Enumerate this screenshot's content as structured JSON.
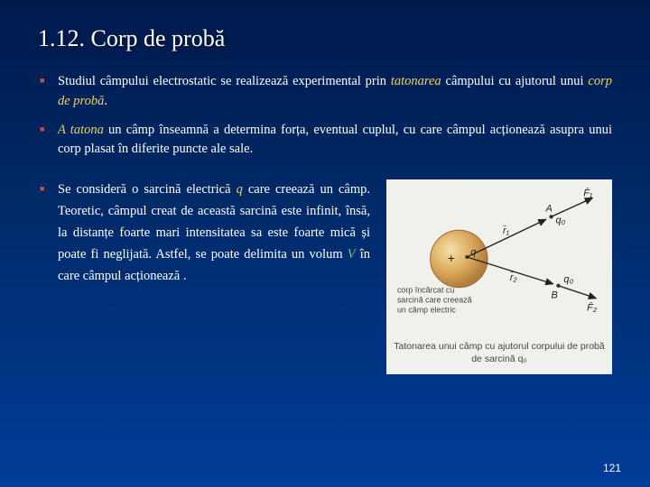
{
  "title": "1.12. Corp de probă",
  "bullets_top": [
    {
      "parts": [
        {
          "t": "Studiul câmpului electrostatic se realizează experimental prin ",
          "cls": ""
        },
        {
          "t": "tatonarea",
          "cls": "italic-yellow"
        },
        {
          "t": " câmpului cu ajutorul unui ",
          "cls": ""
        },
        {
          "t": "corp de probă",
          "cls": "italic-yellow"
        },
        {
          "t": ".",
          "cls": ""
        }
      ]
    },
    {
      "parts": [
        {
          "t": "A tatona",
          "cls": "italic-yellow"
        },
        {
          "t": " un câmp înseamnă a determina forța, eventual cuplul, cu care câmpul acționează asupra unui corp plasat în diferite puncte ale sale.",
          "cls": ""
        }
      ]
    }
  ],
  "bullet_lower": {
    "parts": [
      {
        "t": "Se consideră o sarcină electrică ",
        "cls": ""
      },
      {
        "t": "q",
        "cls": "italic-yellow"
      },
      {
        "t": " care creează un câmp. Teoretic, câmpul creat de această sarcină este infinit, însă, la distanțe foarte mari intensitatea sa este foarte mică și poate fi neglijată. Astfel, se poate delimita un volum ",
        "cls": ""
      },
      {
        "t": "V",
        "cls": "italic-green"
      },
      {
        "t": "  în care câmpul acționează .",
        "cls": ""
      }
    ]
  },
  "figure": {
    "caption_left": "corp încărcat cu sarcină care creează un câmp electric",
    "caption_bottom": "Tatonarea unui câmp cu ajutorul corpului de probă de sarcină q₀",
    "sphere_fill": "#d9a85a",
    "sphere_stroke": "#b08030",
    "bg": "#f0f0ec",
    "labels": {
      "q": "q",
      "plus": "+",
      "A": "A",
      "B": "B",
      "q0_top": "q₀",
      "q0_bot": "q₀",
      "r1": "r̄₁",
      "r2": "r̄₂",
      "F1": "F̄₁",
      "F2": "F̄₂"
    }
  },
  "page_number": "121"
}
